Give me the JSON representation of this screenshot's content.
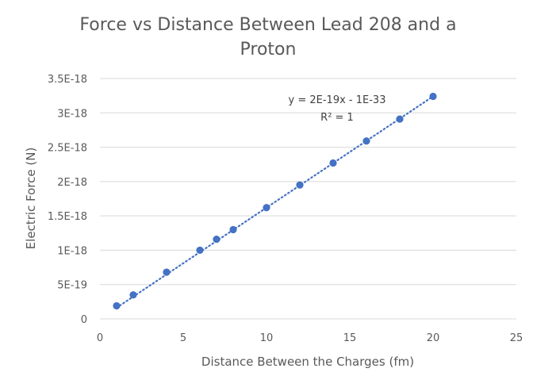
{
  "chart_data": {
    "type": "scatter",
    "title_lines": [
      "Force vs Distance Between Lead 208 and a",
      "Proton"
    ],
    "xlabel": "Distance Between the Charges (fm)",
    "ylabel": "Electric Force (N)",
    "xlim": [
      0,
      25
    ],
    "ylim": [
      0,
      3.5e-18
    ],
    "x_ticks": [
      {
        "value": 0,
        "label": "0"
      },
      {
        "value": 5,
        "label": "5"
      },
      {
        "value": 10,
        "label": "10"
      },
      {
        "value": 15,
        "label": "15"
      },
      {
        "value": 20,
        "label": "20"
      },
      {
        "value": 25,
        "label": "25"
      }
    ],
    "y_ticks": [
      {
        "value": 0,
        "label": "0"
      },
      {
        "value": 5e-19,
        "label": "5E-19"
      },
      {
        "value": 1e-18,
        "label": "1E-18"
      },
      {
        "value": 1.5e-18,
        "label": "1.5E-18"
      },
      {
        "value": 2e-18,
        "label": "2E-18"
      },
      {
        "value": 2.5e-18,
        "label": "2.5E-18"
      },
      {
        "value": 3e-18,
        "label": "3E-18"
      },
      {
        "value": 3.5e-18,
        "label": "3.5E-18"
      }
    ],
    "grid": "horizontal",
    "legend": "none",
    "points": [
      {
        "x": 1,
        "y": 1.9e-19
      },
      {
        "x": 2,
        "y": 3.5e-19
      },
      {
        "x": 4,
        "y": 6.8e-19
      },
      {
        "x": 6,
        "y": 1e-18
      },
      {
        "x": 7,
        "y": 1.16e-18
      },
      {
        "x": 8,
        "y": 1.3e-18
      },
      {
        "x": 10,
        "y": 1.62e-18
      },
      {
        "x": 12,
        "y": 1.95e-18
      },
      {
        "x": 14,
        "y": 2.27e-18
      },
      {
        "x": 16,
        "y": 2.59e-18
      },
      {
        "x": 18,
        "y": 2.91e-18
      },
      {
        "x": 20,
        "y": 3.24e-18
      }
    ],
    "trendline": {
      "type": "linear",
      "style": "dotted",
      "x_range": [
        1,
        20
      ],
      "y_range": [
        1.62e-19,
        3.24e-18
      ],
      "equation": "y = 2E-19x - 1E-33",
      "r_squared": "R² = 1"
    },
    "colors": {
      "points": "#4472C4",
      "trendline": "#4472C4",
      "grid": "#D9D9D9",
      "text": "#595959"
    }
  }
}
